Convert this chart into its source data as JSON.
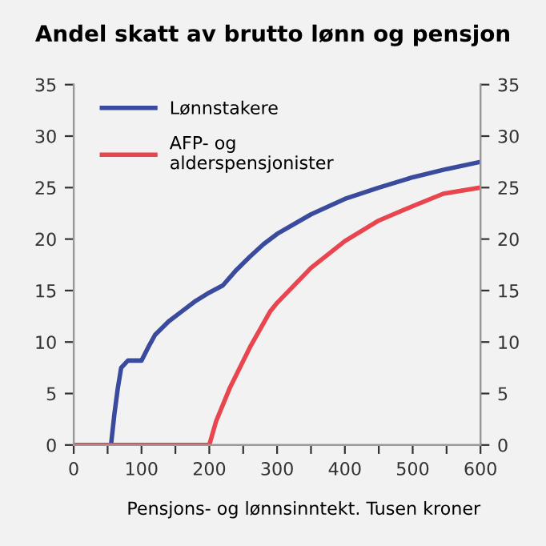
{
  "chart_data": {
    "type": "line",
    "title": "Andel skatt av brutto lønn og pensjon",
    "xlabel": "Pensjons- og lønnsinntekt. Tusen kroner",
    "series": [
      {
        "name": "Lønnstakere",
        "color": "#3a4a9c",
        "x": [
          0,
          55,
          60,
          65,
          70,
          80,
          100,
          110,
          120,
          140,
          160,
          180,
          200,
          220,
          240,
          260,
          280,
          300,
          350,
          400,
          450,
          500,
          550,
          600
        ],
        "values": [
          0,
          0,
          3,
          5.5,
          7.5,
          8.2,
          8.2,
          9.5,
          10.7,
          12.0,
          13.0,
          14.0,
          14.8,
          15.5,
          17.0,
          18.3,
          19.5,
          20.5,
          22.4,
          23.9,
          25.0,
          26.0,
          26.8,
          27.5
        ]
      },
      {
        "name": "AFP- og\nalderspensjonister",
        "color": "#e8454f",
        "x": [
          0,
          200,
          210,
          230,
          260,
          290,
          300,
          350,
          400,
          450,
          500,
          545,
          600
        ],
        "values": [
          0,
          0,
          2.3,
          5.5,
          9.5,
          13.0,
          13.8,
          17.2,
          19.8,
          21.8,
          23.2,
          24.4,
          25.0
        ]
      }
    ],
    "xlim": [
      0,
      600
    ],
    "xticks": [
      0,
      {
        "value": 50,
        "label": null
      },
      100,
      {
        "value": 150,
        "label": null
      },
      200,
      {
        "value": 250,
        "label": null
      },
      300,
      {
        "value": 350,
        "label": null
      },
      400,
      {
        "value": 450,
        "label": null
      },
      500,
      {
        "value": 550,
        "label": null
      },
      600
    ],
    "ylim": [
      0,
      35
    ],
    "yticks": [
      0,
      5,
      10,
      15,
      20,
      25,
      30,
      35
    ],
    "y2lim": [
      0,
      35
    ],
    "y2ticks": [
      0,
      5,
      10,
      15,
      20,
      25,
      30,
      35
    ],
    "grid": false,
    "legend": "top left",
    "marker": "none",
    "line_style": "solid"
  }
}
